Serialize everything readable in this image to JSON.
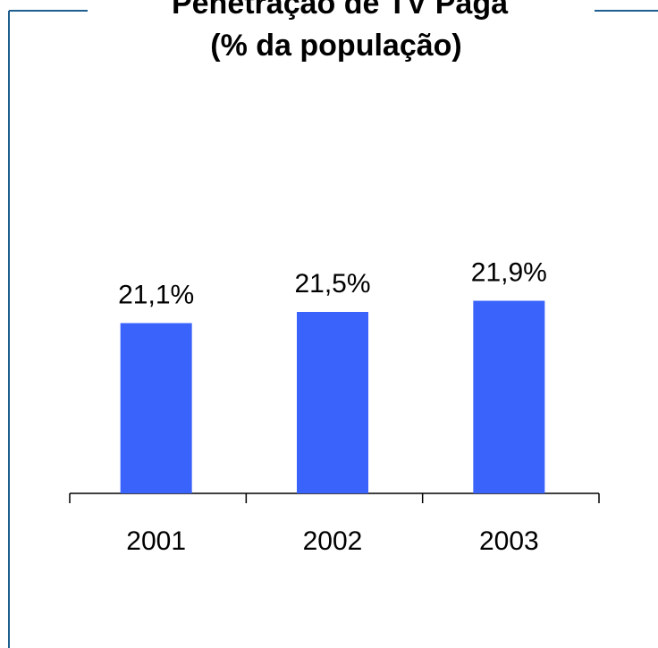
{
  "chart_data": {
    "type": "bar",
    "title": "Penetração de TV Paga",
    "subtitle": "(% da população)",
    "categories": [
      "2001",
      "2002",
      "2003"
    ],
    "values": [
      21.1,
      21.5,
      21.9
    ],
    "value_labels": [
      "21,1%",
      "21,5%",
      "21,9%"
    ],
    "color": "#3a63fc",
    "ylim": [
      15,
      28
    ]
  }
}
